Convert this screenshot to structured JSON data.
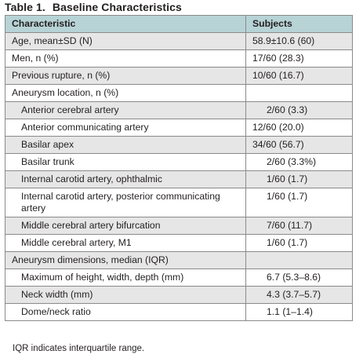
{
  "table": {
    "number": "Table 1.",
    "title": "Baseline Characteristics",
    "columns": [
      "Characteristic",
      "Subjects"
    ],
    "rows": [
      {
        "characteristic": "Age, mean±SD (N)",
        "subjects": "58.9±10.6 (60)",
        "indent": false
      },
      {
        "characteristic": "Men, n (%)",
        "subjects": "17/60 (28.3)",
        "indent": false
      },
      {
        "characteristic": "Previous rupture, n (%)",
        "subjects": "10/60 (16.7)",
        "indent": false
      },
      {
        "characteristic": "Aneurysm location, n (%)",
        "subjects": "",
        "indent": false
      },
      {
        "characteristic": "Anterior cerebral artery",
        "subjects": "2/60 (3.3)",
        "indent": true
      },
      {
        "characteristic": "Anterior communicating artery",
        "subjects": "12/60 (20.0)",
        "indent": true
      },
      {
        "characteristic": "Basilar apex",
        "subjects": "34/60 (56.7)",
        "indent": true
      },
      {
        "characteristic": "Basilar trunk",
        "subjects": "2/60 (3.3%)",
        "indent": true
      },
      {
        "characteristic": "Internal carotid artery, ophthalmic",
        "subjects": "1/60 (1.7)",
        "indent": true
      },
      {
        "characteristic": "Internal carotid artery, posterior communicating artery",
        "subjects": "1/60 (1.7)",
        "indent": true
      },
      {
        "characteristic": "Middle cerebral artery bifurcation",
        "subjects": "7/60 (11.7)",
        "indent": true
      },
      {
        "characteristic": "Middle cerebral artery, M1",
        "subjects": "1/60 (1.7)",
        "indent": true
      },
      {
        "characteristic": "Aneurysm dimensions, median (IQR)",
        "subjects": "",
        "indent": false
      },
      {
        "characteristic": "Maximum of height, width, depth (mm)",
        "subjects": "6.7 (5.3–8.6)",
        "indent": true
      },
      {
        "characteristic": "Neck width (mm)",
        "subjects": "4.3 (3.7–5.7)",
        "indent": true
      },
      {
        "characteristic": "Dome/neck ratio",
        "subjects": "1.1 (1–1.4)",
        "indent": true
      }
    ]
  },
  "footnote": "IQR indicates interquartile range.",
  "colors": {
    "header_bg": "#b7d3d6",
    "row_gray": "#e6e6e6",
    "row_white": "#ffffff",
    "border": "#8a8a8a"
  }
}
